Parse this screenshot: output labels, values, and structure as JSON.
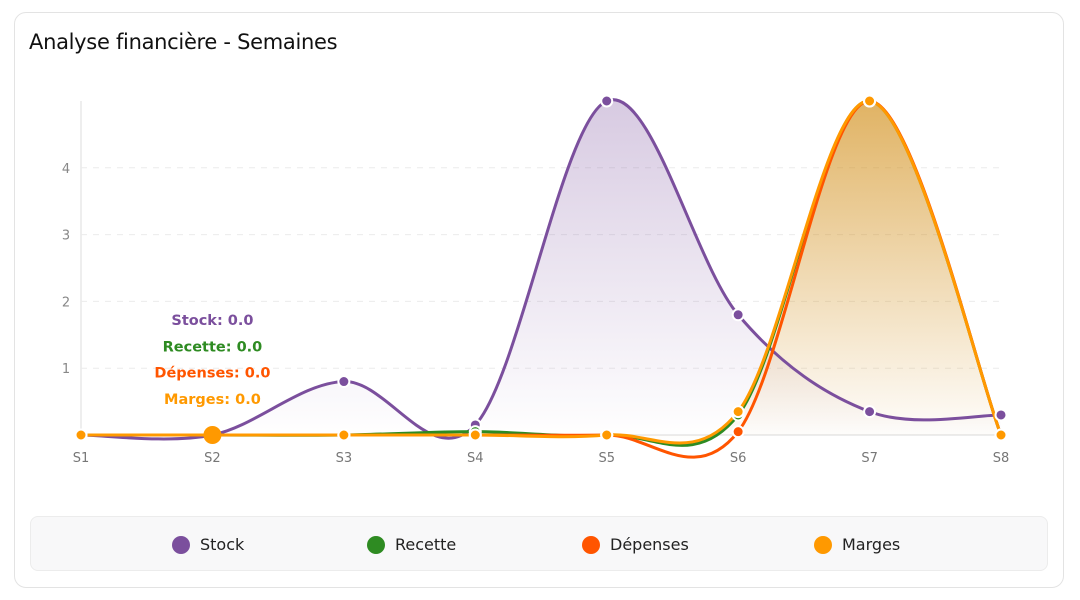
{
  "title": "Analyse financière - Semaines",
  "chart_data": {
    "type": "line",
    "title": "Analyse financière - Semaines",
    "categories": [
      "S1",
      "S2",
      "S3",
      "S4",
      "S5",
      "S6",
      "S7",
      "S8"
    ],
    "y_ticks": [
      "1",
      "2",
      "3",
      "4"
    ],
    "ylim": [
      0,
      5
    ],
    "grid": true,
    "smooth": true,
    "legend_position": "bottom",
    "series": [
      {
        "name": "Stock",
        "color": "#7b4f9d",
        "filled": true,
        "values": [
          0,
          0,
          0.8,
          0.15,
          5,
          1.8,
          0.35,
          0.3
        ]
      },
      {
        "name": "Recette",
        "color": "#2e8b22",
        "filled": false,
        "values": [
          0,
          0,
          0,
          0.05,
          0,
          0.3,
          5,
          0
        ]
      },
      {
        "name": "Dépenses",
        "color": "#ff5500",
        "filled": false,
        "values": [
          0,
          0,
          0,
          0,
          0,
          0.05,
          5,
          0
        ]
      },
      {
        "name": "Marges",
        "color": "#ff9900",
        "filled": true,
        "values": [
          0,
          0,
          0,
          0,
          0,
          0.35,
          5,
          0
        ]
      }
    ],
    "tooltip": {
      "category": "S2",
      "lines": [
        "Stock: 0.0",
        "Recette: 0.0",
        "Dépenses: 0.0",
        "Marges: 0.0"
      ]
    }
  },
  "legend": [
    {
      "label": "Stock",
      "color": "#7b4f9d"
    },
    {
      "label": "Recette",
      "color": "#2e8b22"
    },
    {
      "label": "Dépenses",
      "color": "#ff5500"
    },
    {
      "label": "Marges",
      "color": "#ff9900"
    }
  ]
}
